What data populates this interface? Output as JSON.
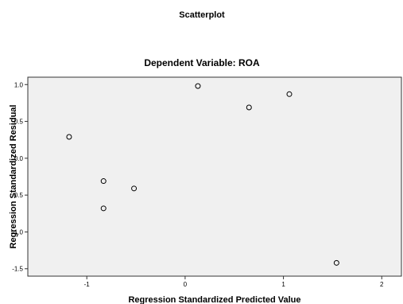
{
  "chart_data": {
    "type": "scatter",
    "title": "Scatterplot",
    "subtitle": "Dependent Variable: ROA",
    "xlabel": "Regression Standardized Predicted Value",
    "ylabel": "Regression Standardized Residual",
    "xlim": [
      -1.6,
      2.2
    ],
    "ylim": [
      -1.6,
      1.1
    ],
    "x_ticks": [
      {
        "v": -1,
        "label": "-1"
      },
      {
        "v": 0,
        "label": "0"
      },
      {
        "v": 1,
        "label": "1"
      },
      {
        "v": 2,
        "label": "2"
      }
    ],
    "y_ticks": [
      {
        "v": 1.0,
        "label": "1.0"
      },
      {
        "v": 0.5,
        "label": "0.5"
      },
      {
        "v": 0.0,
        "label": "0.0"
      },
      {
        "v": -0.5,
        "label": "-0.5"
      },
      {
        "v": -1.0,
        "label": "-1.0"
      },
      {
        "v": -1.5,
        "label": "-1.5"
      }
    ],
    "grid": false,
    "colors": {
      "plot_background": "#f0f0f0",
      "marker": "#000000"
    },
    "points": [
      {
        "x": -1.18,
        "y": 0.29
      },
      {
        "x": -0.83,
        "y": -0.31
      },
      {
        "x": -0.83,
        "y": -0.68
      },
      {
        "x": -0.52,
        "y": -0.41
      },
      {
        "x": 0.13,
        "y": 0.98
      },
      {
        "x": 0.65,
        "y": 0.69
      },
      {
        "x": 1.06,
        "y": 0.87
      },
      {
        "x": 1.54,
        "y": -1.42
      }
    ]
  }
}
